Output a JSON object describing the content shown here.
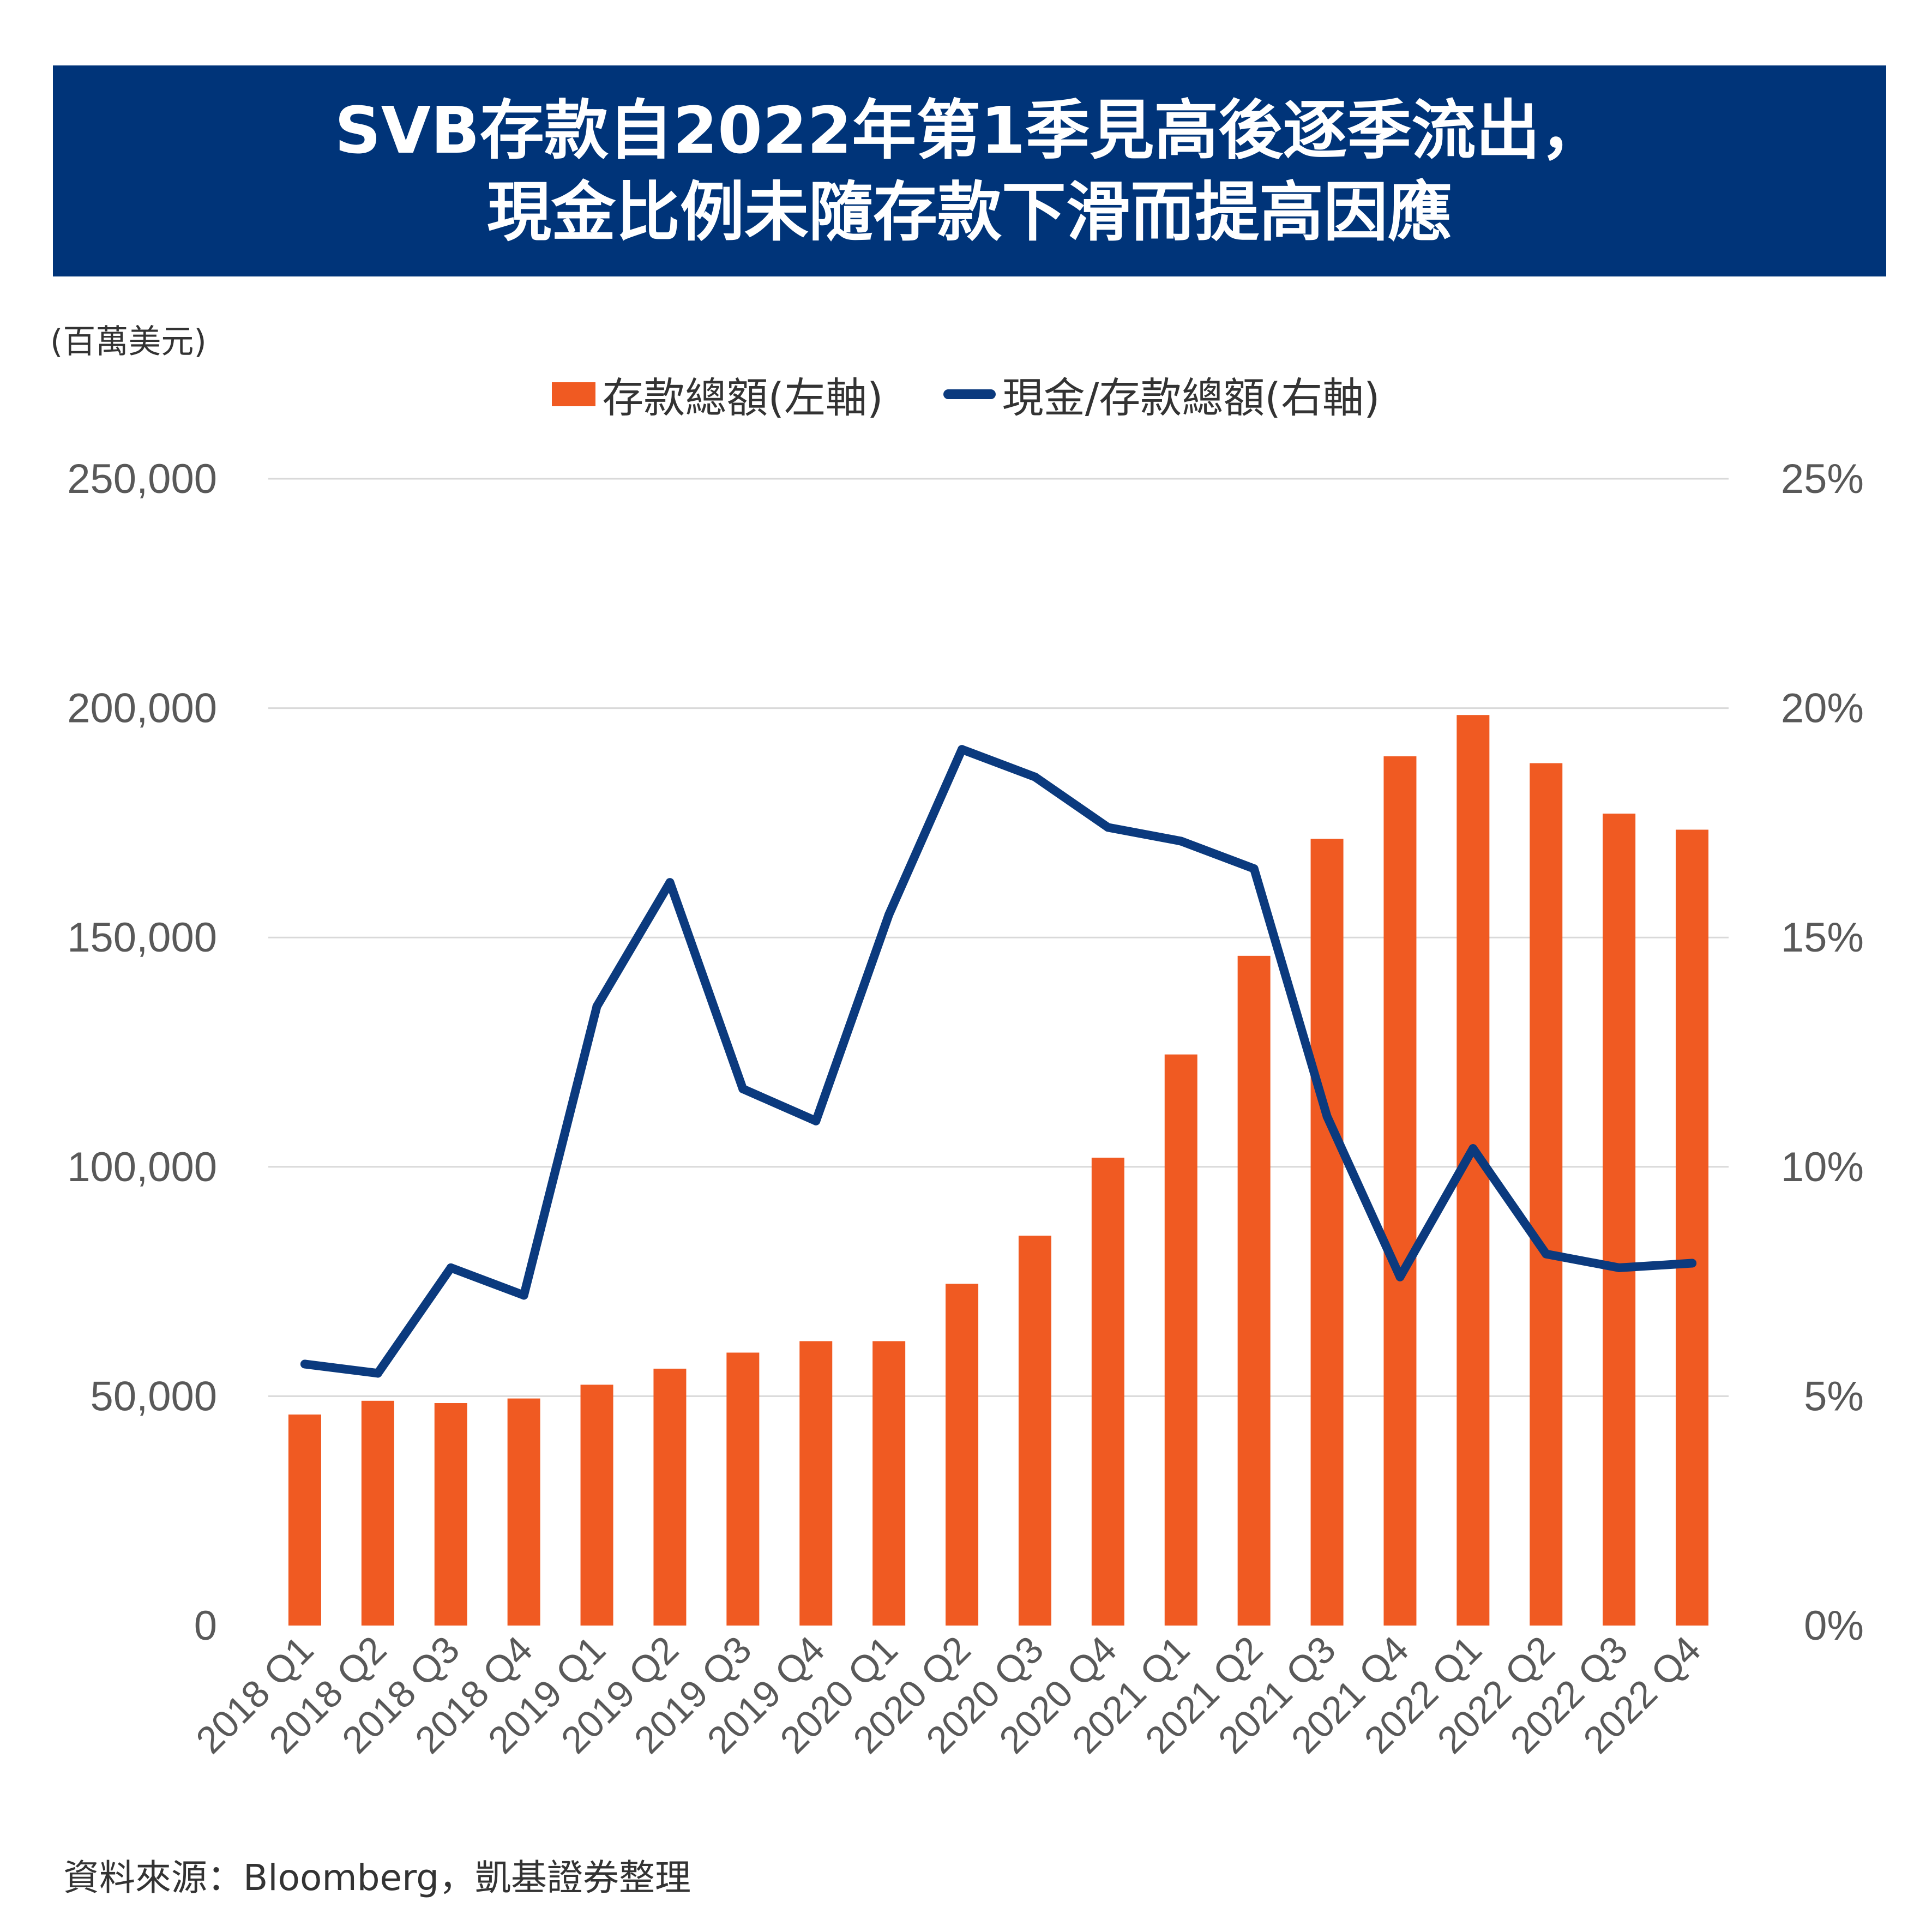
{
  "title": {
    "line1": "SVB存款自2022年第1季見高後逐季流出，",
    "line2": "現金比例未隨存款下滑而提高因應"
  },
  "unit_label": "(百萬美元)",
  "source": "資料來源：Bloomberg，凱基證券整理",
  "colors": {
    "banner": "#003479",
    "bar": "#F05A22",
    "line": "#0B3A7E",
    "grid": "#D9D9D9",
    "text": "#595959"
  },
  "chart_data": {
    "type": "bar",
    "categories": [
      "2018 Q1",
      "2018 Q2",
      "2018 Q3",
      "2018 Q4",
      "2019 Q1",
      "2019 Q2",
      "2019 Q3",
      "2019 Q4",
      "2020 Q1",
      "2020 Q2",
      "2020 Q3",
      "2020 Q4",
      "2021 Q1",
      "2021 Q2",
      "2021 Q3",
      "2021 Q4",
      "2022 Q1",
      "2022 Q2",
      "2022 Q3",
      "2022 Q4"
    ],
    "series": [
      {
        "name": "存款總額(左軸)",
        "type": "bar",
        "axis": "left",
        "values": [
          46000,
          49000,
          48500,
          49500,
          52500,
          56000,
          59500,
          62000,
          62000,
          74500,
          85000,
          102000,
          124500,
          146000,
          171500,
          189500,
          198500,
          188000,
          177000,
          173500
        ]
      },
      {
        "name": "現金/存款總額(右軸)",
        "type": "line",
        "axis": "right",
        "values": [
          5.7,
          5.5,
          7.8,
          7.2,
          13.5,
          16.2,
          11.7,
          11.0,
          15.5,
          19.1,
          18.5,
          17.4,
          17.1,
          16.5,
          11.1,
          7.6,
          10.4,
          8.1,
          7.8,
          7.9
        ]
      }
    ],
    "left_axis": {
      "ylim": [
        0,
        250000
      ],
      "ticks": [
        "0",
        "50,000",
        "100,000",
        "150,000",
        "200,000",
        "250,000"
      ]
    },
    "right_axis": {
      "ylim": [
        0,
        25
      ],
      "ticks": [
        "0%",
        "5%",
        "10%",
        "15%",
        "20%",
        "25%"
      ]
    },
    "grid": true,
    "legend": "top-center"
  }
}
